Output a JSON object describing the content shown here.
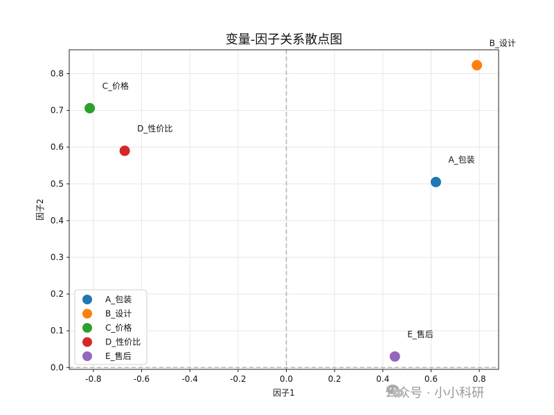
{
  "chart_data": {
    "type": "scatter",
    "title": "变量-因子关系散点图",
    "xlabel": "因子1",
    "ylabel": "因子2",
    "xlim": [
      -0.9,
      0.88
    ],
    "ylim": [
      -0.005,
      0.865
    ],
    "xticks": [
      -0.8,
      -0.6,
      -0.4,
      -0.2,
      0.0,
      0.2,
      0.4,
      0.6,
      0.8
    ],
    "yticks": [
      0.0,
      0.1,
      0.2,
      0.3,
      0.4,
      0.5,
      0.6,
      0.7,
      0.8
    ],
    "xtick_labels": [
      "-0.8",
      "-0.6",
      "-0.4",
      "-0.2",
      "0.0",
      "0.2",
      "0.4",
      "0.6",
      "0.8"
    ],
    "ytick_labels": [
      "0.0",
      "0.1",
      "0.2",
      "0.3",
      "0.4",
      "0.5",
      "0.6",
      "0.7",
      "0.8"
    ],
    "grid": true,
    "legend_position": "lower-left",
    "reference_lines": {
      "x": 0.0,
      "y": 0.0
    },
    "series": [
      {
        "name": "A_包装",
        "x": 0.62,
        "y": 0.505,
        "color": "#1f77b4"
      },
      {
        "name": "B_设计",
        "x": 0.79,
        "y": 0.823,
        "color": "#ff7f0e"
      },
      {
        "name": "C_价格",
        "x": -0.815,
        "y": 0.706,
        "color": "#2ca02c"
      },
      {
        "name": "D_性价比",
        "x": -0.67,
        "y": 0.59,
        "color": "#d62728"
      },
      {
        "name": "E_售后",
        "x": 0.45,
        "y": 0.03,
        "color": "#9467bd"
      }
    ]
  },
  "watermark": {
    "text": "公众号 · 小小科研",
    "icon": "wechat-icon"
  }
}
